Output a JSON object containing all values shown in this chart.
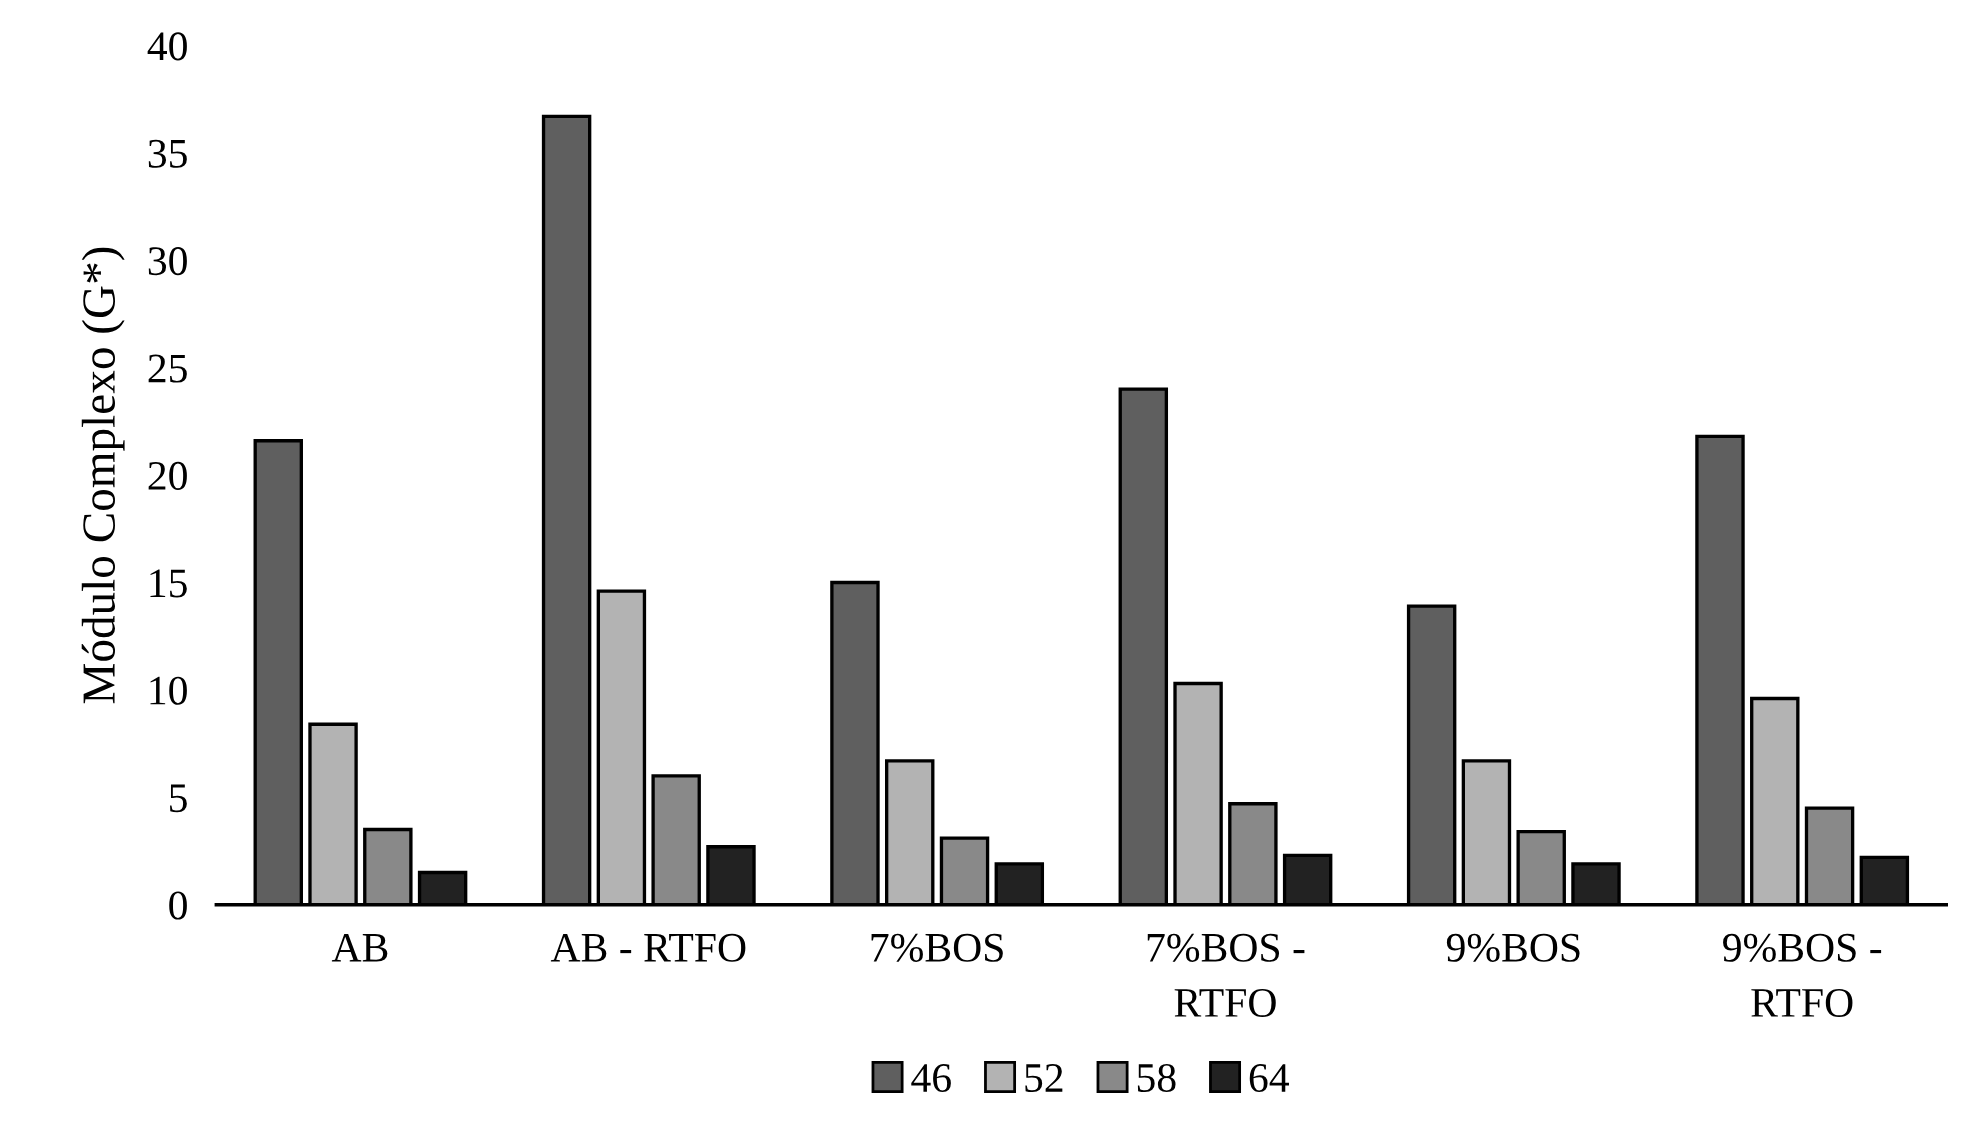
{
  "chart_data": {
    "type": "bar",
    "ylabel": "Módulo Complexo (G*)",
    "categories": [
      "AB",
      "AB - RTFO",
      "7%BOS",
      "7%BOS - RTFO",
      "9%BOS",
      "9%BOS - RTFO"
    ],
    "series": [
      {
        "name": "46",
        "color": "#5f5f5f",
        "values": [
          21.6,
          36.7,
          15.0,
          24.0,
          13.9,
          21.8
        ]
      },
      {
        "name": "52",
        "color": "#b3b3b3",
        "values": [
          8.4,
          14.6,
          6.7,
          10.3,
          6.7,
          9.6
        ]
      },
      {
        "name": "58",
        "color": "#898989",
        "values": [
          3.5,
          6.0,
          3.1,
          4.7,
          3.4,
          4.5
        ]
      },
      {
        "name": "64",
        "color": "#222222",
        "values": [
          1.5,
          2.7,
          1.9,
          2.3,
          1.9,
          2.2
        ]
      }
    ],
    "ylim": [
      0,
      40
    ],
    "yticks": [
      0,
      5,
      10,
      15,
      20,
      25,
      30,
      35,
      40
    ],
    "grid": false,
    "legend": "bottom"
  }
}
